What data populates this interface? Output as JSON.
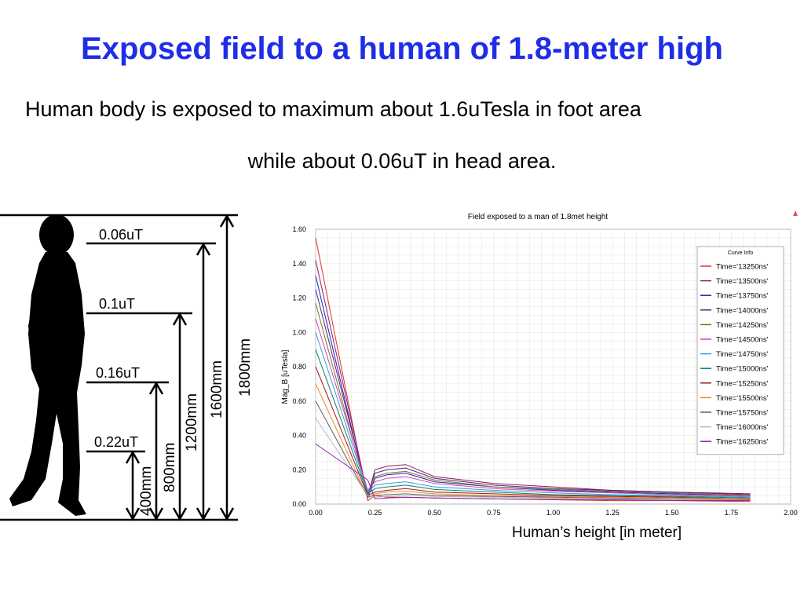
{
  "slide": {
    "title": "Exposed field to a human of 1.8-meter high",
    "subtitle_line1": "Human body is exposed to maximum  about 1.6uTesla in foot area",
    "subtitle_line2": "while about 0.06uT in head area.",
    "x_caption": "Human’s height [in meter]"
  },
  "figure": {
    "field_labels": [
      "0.06uT",
      "0.1uT",
      "0.16uT",
      "0.22uT"
    ],
    "height_labels": [
      "400mm",
      "800mm",
      "1200mm",
      "1600mm",
      "1800mm"
    ]
  },
  "chart_data": {
    "type": "line",
    "title": "Field exposed to a man of 1.8met height",
    "ylabel": "Mag_B [uTesla]",
    "xlim": [
      0,
      2.0
    ],
    "ylim": [
      0,
      1.6
    ],
    "x_ticks": [
      "0.00",
      "0.25",
      "0.50",
      "0.75",
      "1.00",
      "1.25",
      "1.50",
      "1.75",
      "2.00"
    ],
    "y_ticks": [
      "0.00",
      "0.20",
      "0.40",
      "0.60",
      "0.80",
      "1.00",
      "1.20",
      "1.40",
      "1.60"
    ],
    "grid": true,
    "legend_title": "Curve Info",
    "legend_position": "right",
    "x": [
      0,
      0.22,
      0.25,
      0.3,
      0.38,
      0.5,
      0.75,
      1.0,
      1.25,
      1.5,
      1.83
    ],
    "series": [
      {
        "name": "Time='13250ns'",
        "color": "#e03030",
        "values": [
          1.55,
          0.02,
          0.05,
          0.04,
          0.04,
          0.035,
          0.03,
          0.025,
          0.02,
          0.02,
          0.015
        ]
      },
      {
        "name": "Time='13500ns'",
        "color": "#8b2060",
        "values": [
          1.42,
          0.05,
          0.2,
          0.22,
          0.23,
          0.16,
          0.12,
          0.1,
          0.08,
          0.07,
          0.06
        ]
      },
      {
        "name": "Time='13750ns'",
        "color": "#2020c0",
        "values": [
          1.33,
          0.04,
          0.15,
          0.17,
          0.18,
          0.13,
          0.1,
          0.08,
          0.07,
          0.06,
          0.05
        ]
      },
      {
        "name": "Time='14000ns'",
        "color": "#602080",
        "values": [
          1.25,
          0.06,
          0.18,
          0.2,
          0.21,
          0.15,
          0.11,
          0.09,
          0.08,
          0.07,
          0.055
        ]
      },
      {
        "name": "Time='14250ns'",
        "color": "#7a7a10",
        "values": [
          1.17,
          0.05,
          0.16,
          0.18,
          0.19,
          0.14,
          0.1,
          0.085,
          0.075,
          0.065,
          0.05
        ]
      },
      {
        "name": "Time='14500ns'",
        "color": "#e040c0",
        "values": [
          1.08,
          0.08,
          0.13,
          0.15,
          0.16,
          0.12,
          0.09,
          0.075,
          0.065,
          0.055,
          0.045
        ]
      },
      {
        "name": "Time='14750ns'",
        "color": "#30a0e0",
        "values": [
          1.0,
          0.07,
          0.11,
          0.12,
          0.13,
          0.1,
          0.08,
          0.065,
          0.055,
          0.05,
          0.04
        ]
      },
      {
        "name": "Time='15000ns'",
        "color": "#108070",
        "values": [
          0.9,
          0.06,
          0.09,
          0.1,
          0.11,
          0.085,
          0.07,
          0.055,
          0.05,
          0.045,
          0.035
        ]
      },
      {
        "name": "Time='15250ns'",
        "color": "#a01818",
        "values": [
          0.8,
          0.05,
          0.07,
          0.08,
          0.09,
          0.07,
          0.06,
          0.05,
          0.045,
          0.04,
          0.03
        ]
      },
      {
        "name": "Time='15500ns'",
        "color": "#f08a20",
        "values": [
          0.7,
          0.04,
          0.06,
          0.07,
          0.075,
          0.06,
          0.05,
          0.045,
          0.04,
          0.035,
          0.03
        ]
      },
      {
        "name": "Time='15750ns'",
        "color": "#606060",
        "values": [
          0.6,
          0.04,
          0.05,
          0.055,
          0.06,
          0.05,
          0.045,
          0.04,
          0.035,
          0.03,
          0.025
        ]
      },
      {
        "name": "Time='16000ns'",
        "color": "#b8b8b8",
        "values": [
          0.5,
          0.05,
          0.04,
          0.045,
          0.05,
          0.045,
          0.04,
          0.035,
          0.03,
          0.028,
          0.022
        ]
      },
      {
        "name": "Time='16250ns'",
        "color": "#9020b0",
        "values": [
          0.35,
          0.14,
          0.03,
          0.035,
          0.04,
          0.035,
          0.03,
          0.028,
          0.025,
          0.022,
          0.02
        ]
      }
    ]
  }
}
